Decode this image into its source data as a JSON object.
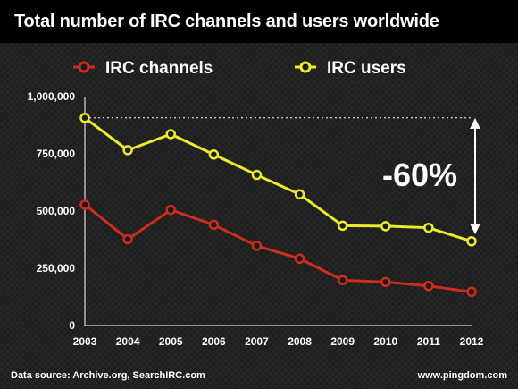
{
  "title": "Total number of IRC channels and users worldwide",
  "source": "Data source: Archive.org, SearchIRC.com",
  "site": "www.pingdom.com",
  "colors": {
    "channels": "#cc2d1e",
    "users": "#ecec2a",
    "background": "#222222",
    "title_bar": "#000000"
  },
  "chart_data": {
    "type": "line",
    "x": [
      "2003",
      "2004",
      "2005",
      "2006",
      "2007",
      "2008",
      "2009",
      "2010",
      "2011",
      "2012"
    ],
    "series": [
      {
        "name": "IRC channels",
        "values": [
          528000,
          377000,
          505000,
          440000,
          348000,
          292000,
          198000,
          190000,
          173000,
          147000
        ]
      },
      {
        "name": "IRC users",
        "values": [
          907000,
          766000,
          836000,
          747000,
          658000,
          573000,
          436000,
          434000,
          427000,
          368000
        ]
      }
    ],
    "yticks": [
      "0",
      "250,000",
      "500,000",
      "750,000",
      "1,000,000"
    ],
    "ylim": [
      0,
      1000000
    ],
    "grid": false,
    "legend": "top",
    "reference_line": 907000,
    "annotation": "-60%"
  }
}
